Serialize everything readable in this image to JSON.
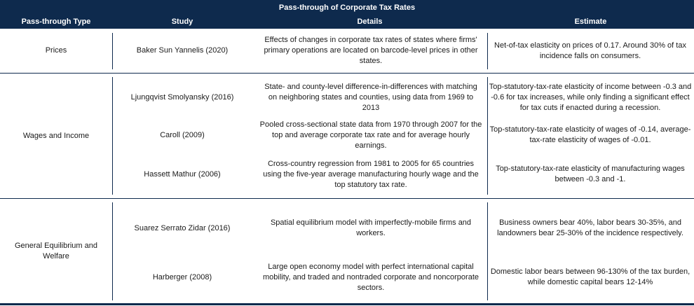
{
  "title": "Pass-through of Corporate Tax Rates",
  "headers": {
    "type": "Pass-through Type",
    "study": "Study",
    "details": "Details",
    "estimate": "Estimate"
  },
  "groups": [
    {
      "type": "Prices",
      "rows": [
        {
          "study": "Baker Sun Yannelis (2020)",
          "details": "Effects of changes in corporate tax rates of states where firms' primary operations are located on barcode-level prices in other states.",
          "estimate": "Net-of-tax elasticity on prices of 0.17. Around 30% of tax incidence falls on consumers."
        }
      ]
    },
    {
      "type": "Wages and Income",
      "rows": [
        {
          "study": "Ljungqvist Smolyansky (2016)",
          "details": "State- and county-level difference-in-differences with matching on neighboring states and counties, using data from 1969 to 2013",
          "estimate": "Top-statutory-tax-rate elasticity of income between -0.3 and -0.6 for tax increases, while only finding a significant effect for tax cuts if enacted during a recession."
        },
        {
          "study": "Caroll (2009)",
          "details": "Pooled cross-sectional state data from 1970 through 2007 for the top and average corporate tax rate and for average hourly earnings.",
          "estimate": "Top-statutory-tax-rate elasticity of wages of -0.14, average-tax-rate elasticity of wages of -0.01."
        },
        {
          "study": "Hassett Mathur (2006)",
          "details": "Cross-country regression from 1981 to 2005 for 65 countries using the five-year average manufacturing hourly wage and the top statutory tax rate.",
          "estimate": "Top-statutory-tax-rate elasticity of manufacturing wages between -0.3 and -1."
        }
      ]
    },
    {
      "type": "General Equilibrium and Welfare",
      "rows": [
        {
          "study": "Suarez Serrato Zidar (2016)",
          "details": "Spatial equilibrium model with imperfectly-mobile firms and workers.",
          "estimate": "Business owners bear 40%, labor bears 30-35%, and landowners bear 25-30% of the incidence respectively."
        },
        {
          "study": "Harberger (2008)",
          "details": "Large open economy model with perfect international capital mobility, and traded and nontraded corporate and noncorporate sectors.",
          "estimate": "Domestic labor bears between 96-130% of the tax burden, while domestic capital bears 12-14%"
        }
      ]
    }
  ],
  "colors": {
    "header_bg": "#0e2a4d",
    "header_text": "#ffffff",
    "rule": "#0e2a4d"
  }
}
